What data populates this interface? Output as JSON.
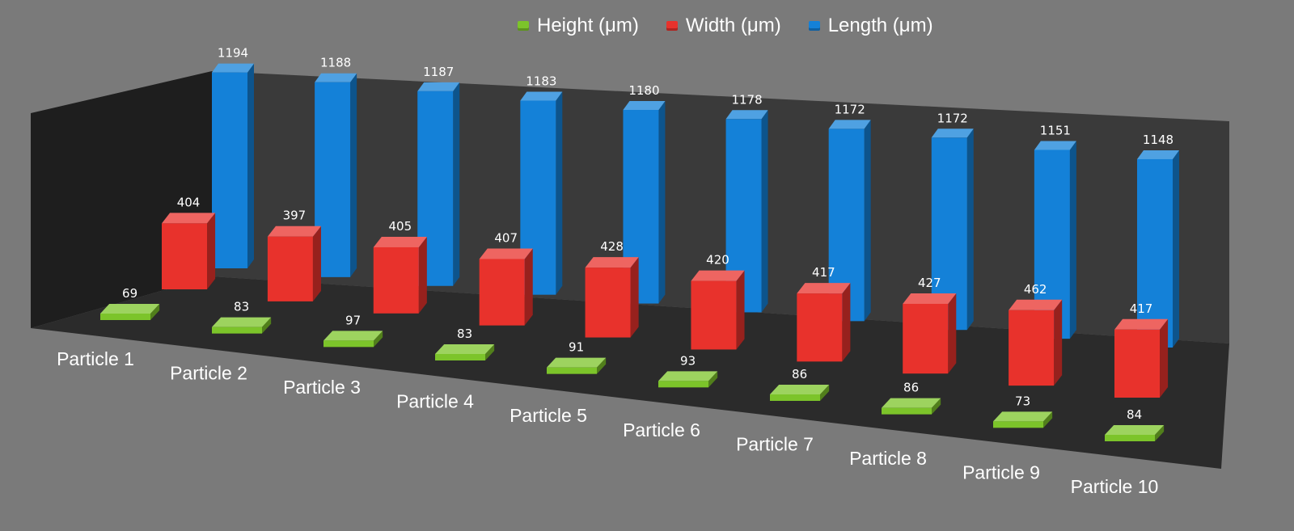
{
  "chart_data": {
    "type": "bar",
    "title": "",
    "xlabel": "",
    "ylabel": "",
    "categories": [
      "Particle 1",
      "Particle 2",
      "Particle 3",
      "Particle 4",
      "Particle 5",
      "Particle 6",
      "Particle 7",
      "Particle 8",
      "Particle 9",
      "Particle 10"
    ],
    "series": [
      {
        "name": "Height (μm)",
        "color": "#7cc42a",
        "values": [
          69,
          83,
          97,
          83,
          91,
          93,
          86,
          86,
          73,
          84
        ]
      },
      {
        "name": "Width (μm)",
        "color": "#e8322c",
        "values": [
          404,
          397,
          405,
          407,
          428,
          420,
          417,
          427,
          462,
          417
        ]
      },
      {
        "name": "Length (μm)",
        "color": "#1481d8",
        "values": [
          1194,
          1188,
          1187,
          1183,
          1180,
          1178,
          1172,
          1172,
          1151,
          1148
        ]
      }
    ],
    "legend_position": "top",
    "grid": false,
    "style": "3d-clustered-columns"
  },
  "colors": {
    "background": "#7a7a7a",
    "floor": "#2b2b2b",
    "back_wall": "#3a3a3a",
    "side_wall": "#1e1e1e",
    "text": "#ffffff"
  }
}
